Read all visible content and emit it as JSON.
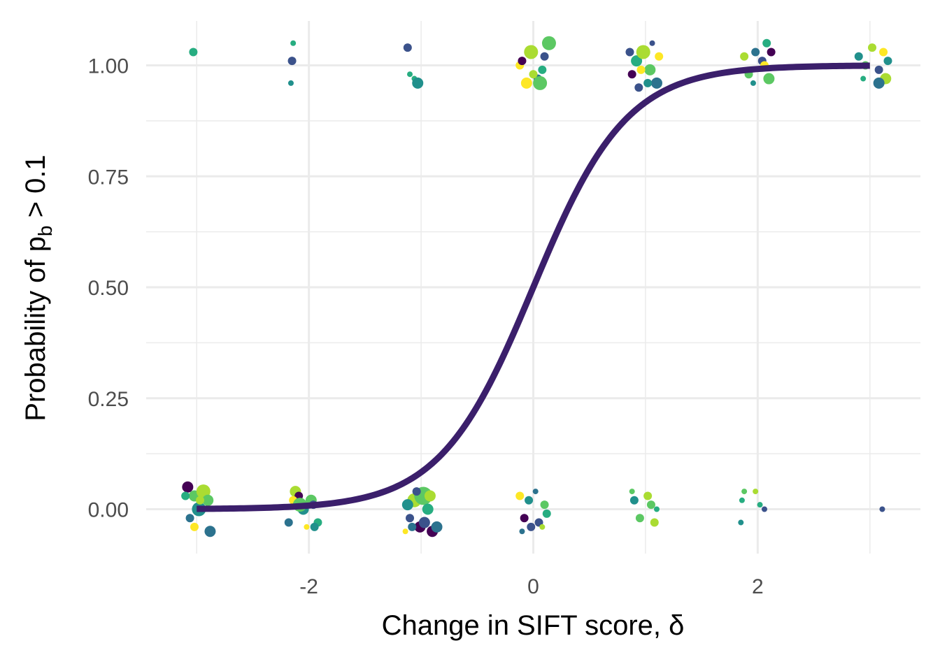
{
  "chart_data": {
    "type": "scatter",
    "title": "",
    "xlabel": "Change in SIFT score, δ",
    "ylabel": {
      "prefix": "Probability of p",
      "subscript": "b",
      "suffix": " > 0.1"
    },
    "xlim": [
      -3.45,
      3.45
    ],
    "ylim": [
      -0.1,
      1.1
    ],
    "x_ticks": [
      -2,
      0,
      2
    ],
    "x_tick_labels": [
      "-2",
      "0",
      "2"
    ],
    "y_ticks": [
      0,
      0.25,
      0.5,
      0.75,
      1
    ],
    "y_tick_labels": [
      "0.00",
      "0.25",
      "0.50",
      "0.75",
      "1.00"
    ],
    "grid": true,
    "legend": "none",
    "background": "#ffffff",
    "curve": {
      "type": "logistic",
      "x_range": [
        -3,
        3
      ],
      "intercept": 0,
      "slope": 2.4,
      "color": "#3b1f6b"
    },
    "colors": {
      "viridis": [
        "#440154",
        "#3b528b",
        "#2c728e",
        "#21908c",
        "#27ad81",
        "#5cc863",
        "#aadc32",
        "#fde725"
      ],
      "grid": "#ebebeb",
      "tick_text": "#4d4d4d",
      "title_text": "#000000"
    },
    "points": [
      {
        "x": -3.02,
        "y": 0.03,
        "c": 5,
        "s": 2
      },
      {
        "x": -2.98,
        "y": 0.0,
        "c": 3,
        "s": 3
      },
      {
        "x": -2.94,
        "y": 0.04,
        "c": 6,
        "s": 3
      },
      {
        "x": -3.08,
        "y": 0.05,
        "c": 0,
        "s": 2
      },
      {
        "x": -3.06,
        "y": -0.02,
        "c": 2,
        "s": 1
      },
      {
        "x": -2.9,
        "y": 0.02,
        "c": 5,
        "s": 2
      },
      {
        "x": -3.02,
        "y": -0.04,
        "c": 7,
        "s": 1
      },
      {
        "x": -2.88,
        "y": -0.05,
        "c": 2,
        "s": 2
      },
      {
        "x": -3.1,
        "y": 0.03,
        "c": 4,
        "s": 1
      },
      {
        "x": -2.97,
        "y": 0.02,
        "c": 6,
        "s": 1
      },
      {
        "x": -3.03,
        "y": 1.03,
        "c": 4,
        "s": 1
      },
      {
        "x": -2.12,
        "y": 0.04,
        "c": 6,
        "s": 2
      },
      {
        "x": -2.05,
        "y": 0.0,
        "c": 3,
        "s": 2
      },
      {
        "x": -1.98,
        "y": 0.02,
        "c": 5,
        "s": 2
      },
      {
        "x": -2.18,
        "y": -0.03,
        "c": 2,
        "s": 1
      },
      {
        "x": -1.92,
        "y": -0.03,
        "c": 4,
        "s": 1
      },
      {
        "x": -2.09,
        "y": 0.03,
        "c": 0,
        "s": 1
      },
      {
        "x": -2.02,
        "y": -0.04,
        "c": 7,
        "s": 0
      },
      {
        "x": -1.96,
        "y": 0.01,
        "c": 1,
        "s": 1
      },
      {
        "x": -2.14,
        "y": 0.02,
        "c": 7,
        "s": 1
      },
      {
        "x": -2.08,
        "y": 0.01,
        "c": 5,
        "s": 3
      },
      {
        "x": -1.95,
        "y": -0.04,
        "c": 3,
        "s": 1
      },
      {
        "x": -2.15,
        "y": 1.01,
        "c": 1,
        "s": 1
      },
      {
        "x": -2.14,
        "y": 1.05,
        "c": 4,
        "s": 0
      },
      {
        "x": -2.16,
        "y": 0.96,
        "c": 3,
        "s": 0
      },
      {
        "x": -1.06,
        "y": 0.02,
        "c": 6,
        "s": 3
      },
      {
        "x": -0.98,
        "y": 0.03,
        "c": 5,
        "s": 4
      },
      {
        "x": -0.94,
        "y": 0.0,
        "c": 4,
        "s": 2
      },
      {
        "x": -1.12,
        "y": 0.01,
        "c": 3,
        "s": 2
      },
      {
        "x": -1.01,
        "y": -0.04,
        "c": 0,
        "s": 2
      },
      {
        "x": -0.9,
        "y": -0.05,
        "c": 0,
        "s": 2
      },
      {
        "x": -0.97,
        "y": -0.03,
        "c": 1,
        "s": 2
      },
      {
        "x": -1.08,
        "y": -0.04,
        "c": 2,
        "s": 1
      },
      {
        "x": -0.92,
        "y": 0.03,
        "c": 6,
        "s": 2
      },
      {
        "x": -0.86,
        "y": -0.04,
        "c": 2,
        "s": 2
      },
      {
        "x": -1.1,
        "y": -0.02,
        "c": 1,
        "s": 1
      },
      {
        "x": -1.04,
        "y": 0.04,
        "c": 1,
        "s": 1
      },
      {
        "x": -1.14,
        "y": -0.05,
        "c": 7,
        "s": 0
      },
      {
        "x": -1.12,
        "y": 1.04,
        "c": 1,
        "s": 1
      },
      {
        "x": -1.1,
        "y": 0.98,
        "c": 4,
        "s": 0
      },
      {
        "x": -1.06,
        "y": 0.97,
        "c": 4,
        "s": 0
      },
      {
        "x": -1.03,
        "y": 0.96,
        "c": 3,
        "s": 2
      },
      {
        "x": -0.12,
        "y": 0.03,
        "c": 7,
        "s": 1
      },
      {
        "x": -0.08,
        "y": -0.02,
        "c": 0,
        "s": 1
      },
      {
        "x": -0.04,
        "y": 0.02,
        "c": 3,
        "s": 1
      },
      {
        "x": 0.05,
        "y": -0.03,
        "c": 1,
        "s": 1
      },
      {
        "x": 0.1,
        "y": 0.01,
        "c": 5,
        "s": 1
      },
      {
        "x": 0.02,
        "y": 0.04,
        "c": 2,
        "s": 0
      },
      {
        "x": -0.1,
        "y": -0.05,
        "c": 2,
        "s": 0
      },
      {
        "x": 0.08,
        "y": -0.04,
        "c": 6,
        "s": 0
      },
      {
        "x": 0.12,
        "y": -0.01,
        "c": 4,
        "s": 1
      },
      {
        "x": -0.02,
        "y": -0.04,
        "c": 1,
        "s": 1
      },
      {
        "x": -0.12,
        "y": 1.0,
        "c": 7,
        "s": 1
      },
      {
        "x": -0.06,
        "y": 0.96,
        "c": 7,
        "s": 2
      },
      {
        "x": -0.02,
        "y": 1.03,
        "c": 6,
        "s": 3
      },
      {
        "x": 0.04,
        "y": 0.97,
        "c": 2,
        "s": 1
      },
      {
        "x": 0.1,
        "y": 1.02,
        "c": 1,
        "s": 1
      },
      {
        "x": 0.14,
        "y": 1.05,
        "c": 5,
        "s": 3
      },
      {
        "x": 0.06,
        "y": 0.96,
        "c": 5,
        "s": 3
      },
      {
        "x": -0.1,
        "y": 1.01,
        "c": 0,
        "s": 1
      },
      {
        "x": 0.0,
        "y": 0.98,
        "c": 6,
        "s": 1
      },
      {
        "x": 0.08,
        "y": 0.99,
        "c": 4,
        "s": 1
      },
      {
        "x": 0.88,
        "y": 0.04,
        "c": 5,
        "s": 0
      },
      {
        "x": 0.9,
        "y": 0.02,
        "c": 3,
        "s": 1
      },
      {
        "x": 0.95,
        "y": -0.02,
        "c": 5,
        "s": 1
      },
      {
        "x": 1.02,
        "y": 0.03,
        "c": 6,
        "s": 1
      },
      {
        "x": 1.05,
        "y": 0.01,
        "c": 5,
        "s": 1
      },
      {
        "x": 1.08,
        "y": -0.03,
        "c": 6,
        "s": 1
      },
      {
        "x": 1.1,
        "y": 0.0,
        "c": 4,
        "s": 0
      },
      {
        "x": 0.86,
        "y": 1.03,
        "c": 1,
        "s": 1
      },
      {
        "x": 0.92,
        "y": 1.01,
        "c": 4,
        "s": 2
      },
      {
        "x": 0.98,
        "y": 1.03,
        "c": 6,
        "s": 3
      },
      {
        "x": 1.04,
        "y": 0.99,
        "c": 5,
        "s": 2
      },
      {
        "x": 1.1,
        "y": 0.96,
        "c": 2,
        "s": 2
      },
      {
        "x": 0.94,
        "y": 0.95,
        "c": 1,
        "s": 1
      },
      {
        "x": 1.12,
        "y": 1.02,
        "c": 7,
        "s": 1
      },
      {
        "x": 0.88,
        "y": 0.98,
        "c": 0,
        "s": 1
      },
      {
        "x": 1.06,
        "y": 1.05,
        "c": 1,
        "s": 0
      },
      {
        "x": 0.96,
        "y": 0.99,
        "c": 7,
        "s": 1
      },
      {
        "x": 1.02,
        "y": 0.96,
        "c": 3,
        "s": 1
      },
      {
        "x": 1.86,
        "y": 0.02,
        "c": 4,
        "s": 0
      },
      {
        "x": 1.88,
        "y": 0.04,
        "c": 5,
        "s": 0
      },
      {
        "x": 1.85,
        "y": -0.03,
        "c": 3,
        "s": 0
      },
      {
        "x": 1.98,
        "y": 0.04,
        "c": 6,
        "s": 0
      },
      {
        "x": 2.02,
        "y": 0.01,
        "c": 4,
        "s": 0
      },
      {
        "x": 2.06,
        "y": 0.0,
        "c": 1,
        "s": 0
      },
      {
        "x": 1.88,
        "y": 1.02,
        "c": 6,
        "s": 1
      },
      {
        "x": 1.92,
        "y": 0.98,
        "c": 5,
        "s": 1
      },
      {
        "x": 1.98,
        "y": 1.03,
        "c": 2,
        "s": 1
      },
      {
        "x": 2.04,
        "y": 1.01,
        "c": 1,
        "s": 1
      },
      {
        "x": 2.08,
        "y": 1.05,
        "c": 4,
        "s": 1
      },
      {
        "x": 2.1,
        "y": 0.97,
        "c": 5,
        "s": 2
      },
      {
        "x": 1.96,
        "y": 0.96,
        "c": 3,
        "s": 0
      },
      {
        "x": 2.12,
        "y": 1.03,
        "c": 0,
        "s": 1
      },
      {
        "x": 2.06,
        "y": 1.0,
        "c": 7,
        "s": 1
      },
      {
        "x": 3.11,
        "y": 0.0,
        "c": 1,
        "s": 0
      },
      {
        "x": 2.9,
        "y": 1.02,
        "c": 3,
        "s": 1
      },
      {
        "x": 2.96,
        "y": 1.0,
        "c": 5,
        "s": 1
      },
      {
        "x": 3.02,
        "y": 1.04,
        "c": 6,
        "s": 1
      },
      {
        "x": 3.08,
        "y": 0.99,
        "c": 1,
        "s": 1
      },
      {
        "x": 3.12,
        "y": 1.03,
        "c": 7,
        "s": 1
      },
      {
        "x": 3.14,
        "y": 0.97,
        "c": 6,
        "s": 2
      },
      {
        "x": 3.08,
        "y": 0.96,
        "c": 2,
        "s": 2
      },
      {
        "x": 2.94,
        "y": 0.97,
        "c": 4,
        "s": 0
      },
      {
        "x": 3.16,
        "y": 1.01,
        "c": 3,
        "s": 1
      }
    ]
  }
}
